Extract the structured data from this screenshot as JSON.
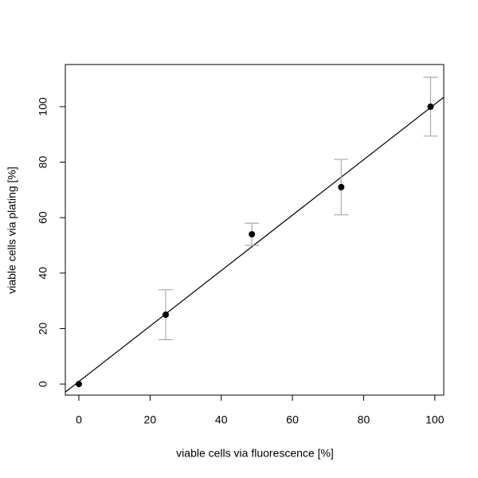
{
  "chart_data": {
    "type": "scatter",
    "xlabel": "viable cells via fluorescence [%]",
    "ylabel": "viable cells via plating [%]",
    "x": [
      0,
      24.4,
      48.6,
      73.7,
      98.8
    ],
    "values": [
      0,
      25,
      54,
      71,
      100
    ],
    "errors": [
      0,
      9,
      4,
      10,
      10.6
    ],
    "color": "#000000",
    "error_color": "#aaaaaa",
    "fit": {
      "slope": 1.0,
      "intercept": 0.9,
      "color": "#000000"
    },
    "xlim": [
      -3.8,
      102.5
    ],
    "ylim": [
      -4.0,
      115.2
    ],
    "xticks": [
      0,
      20,
      40,
      60,
      80,
      100
    ],
    "yticks": [
      0,
      20,
      40,
      60,
      80,
      100
    ]
  }
}
